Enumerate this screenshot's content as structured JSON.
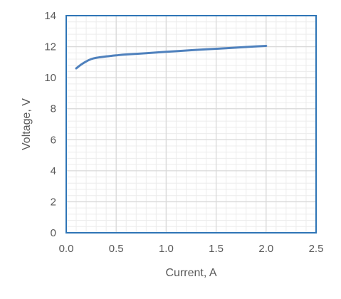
{
  "chart_data": {
    "type": "line",
    "title": "",
    "xlabel": "Current, A",
    "ylabel": "Voltage, V",
    "xlim": [
      0,
      2.5
    ],
    "ylim": [
      0,
      14
    ],
    "x_ticks": [
      "0.0",
      "0.5",
      "1.0",
      "1.5",
      "2.0",
      "2.5"
    ],
    "y_ticks": [
      "0",
      "2",
      "4",
      "6",
      "8",
      "10",
      "12",
      "14"
    ],
    "x_major_step": 0.5,
    "y_major_step": 2,
    "x_minor_step": 0.1,
    "y_minor_step": 0.4,
    "grid": true,
    "legend": "none",
    "series": [
      {
        "color": "#4f81bd",
        "x": [
          0.1,
          0.15,
          0.2,
          0.25,
          0.3,
          0.4,
          0.5,
          0.6,
          0.8,
          1.0,
          1.2,
          1.4,
          1.6,
          1.8,
          2.0
        ],
        "y": [
          10.6,
          10.85,
          11.05,
          11.2,
          11.28,
          11.37,
          11.44,
          11.5,
          11.58,
          11.67,
          11.75,
          11.83,
          11.9,
          11.98,
          12.05
        ]
      }
    ],
    "colors": {
      "plot_border": "#2e75b6",
      "major_grid": "#d9d9d9",
      "minor_grid": "#ececec",
      "text": "#595959"
    }
  }
}
